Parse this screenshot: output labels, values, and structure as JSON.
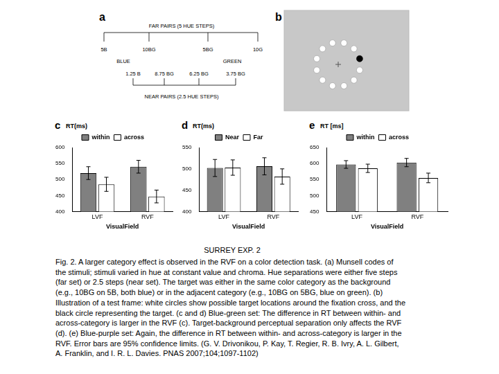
{
  "panel_a": {
    "label": "a",
    "far_title": "FAR PAIRS (5 HUE STEPS)",
    "far_codes": [
      "5B",
      "10BG",
      "5BG",
      "10G"
    ],
    "color_categories": [
      "BLUE",
      "GREEN"
    ],
    "near_codes": [
      "1.25 B",
      "8.75 BG",
      "6.25 BG",
      "3.75 BG"
    ],
    "near_title": "NEAR PAIRS (2.5 HUE STEPS)"
  },
  "panel_b": {
    "label": "b",
    "locations": 12,
    "target": 1
  },
  "chart_data": [
    {
      "panel_label": "c",
      "type": "bar",
      "y_label": "RT(ms)",
      "x_label": "VisualField",
      "categories": [
        "LVF",
        "RVF"
      ],
      "series": [
        {
          "name": "within",
          "color": "#808080",
          "values": [
            520,
            540
          ],
          "errors": [
            20,
            20
          ]
        },
        {
          "name": "across",
          "color": "#ffffff",
          "values": [
            485,
            447
          ],
          "errors": [
            22,
            20
          ]
        }
      ],
      "ylim": [
        400,
        600
      ],
      "yticks": [
        400,
        450,
        500,
        550,
        600
      ],
      "grid": false,
      "legend": "top"
    },
    {
      "panel_label": "d",
      "type": "bar",
      "y_label": "RT(ms)",
      "x_label": "VisualField",
      "categories": [
        "LVF",
        "RVF"
      ],
      "series": [
        {
          "name": "Near",
          "color": "#808080",
          "values": [
            502,
            506
          ],
          "errors": [
            20,
            20
          ]
        },
        {
          "name": "Far",
          "color": "#ffffff",
          "values": [
            503,
            482
          ],
          "errors": [
            18,
            18
          ]
        }
      ],
      "ylim": [
        400,
        550
      ],
      "yticks": [
        400,
        450,
        500,
        550
      ],
      "grid": false,
      "legend": "top"
    },
    {
      "panel_label": "e",
      "type": "bar",
      "y_label": "RT [ms]",
      "x_label": "VisualField",
      "categories": [
        "LVF",
        "RVF"
      ],
      "series": [
        {
          "name": "within",
          "color": "#808080",
          "values": [
            597,
            603
          ],
          "errors": [
            12,
            13
          ]
        },
        {
          "name": "across",
          "color": "#ffffff",
          "values": [
            585,
            555
          ],
          "errors": [
            13,
            15
          ]
        }
      ],
      "ylim": [
        450,
        650
      ],
      "yticks": [
        450,
        500,
        550,
        600,
        650
      ],
      "grid": false,
      "legend": "top"
    }
  ],
  "title": "SURREY EXP. 2",
  "caption": [
    "Fig. 2. A larger category effect is observed in the RVF on a color detection task. (a) Munsell codes of",
    "the stimuli; stimuli varied in hue at constant value and chroma. Hue separations were either five steps",
    "(far set) or 2.5 steps (near set). The target was either in the same color category as the background",
    "(e.g., 10BG on 5B, both blue) or in the adjacent category (e.g., 10BG on 5BG, blue on green). (b)",
    "Illustration of a test frame: white circles show possible target locations around the fixation cross, and the",
    "black circle representing the target. (c and d) Blue-green set: The difference in RT between within- and",
    "across-category is larger in the RVF (c). Target-background perceptual separation only affects the RVF",
    "(d). (e) Blue-purple set: Again, the difference in RT between within- and across-category is larger in the",
    "RVF. Error bars are 95% confidence limits. (G. V. Drivonikou, P. Kay, T. Regier, R. B. Ivry, A. L. Gilbert,",
    "A. Franklin, and I. R. L. Davies. PNAS 2007;104;1097-1102)"
  ]
}
